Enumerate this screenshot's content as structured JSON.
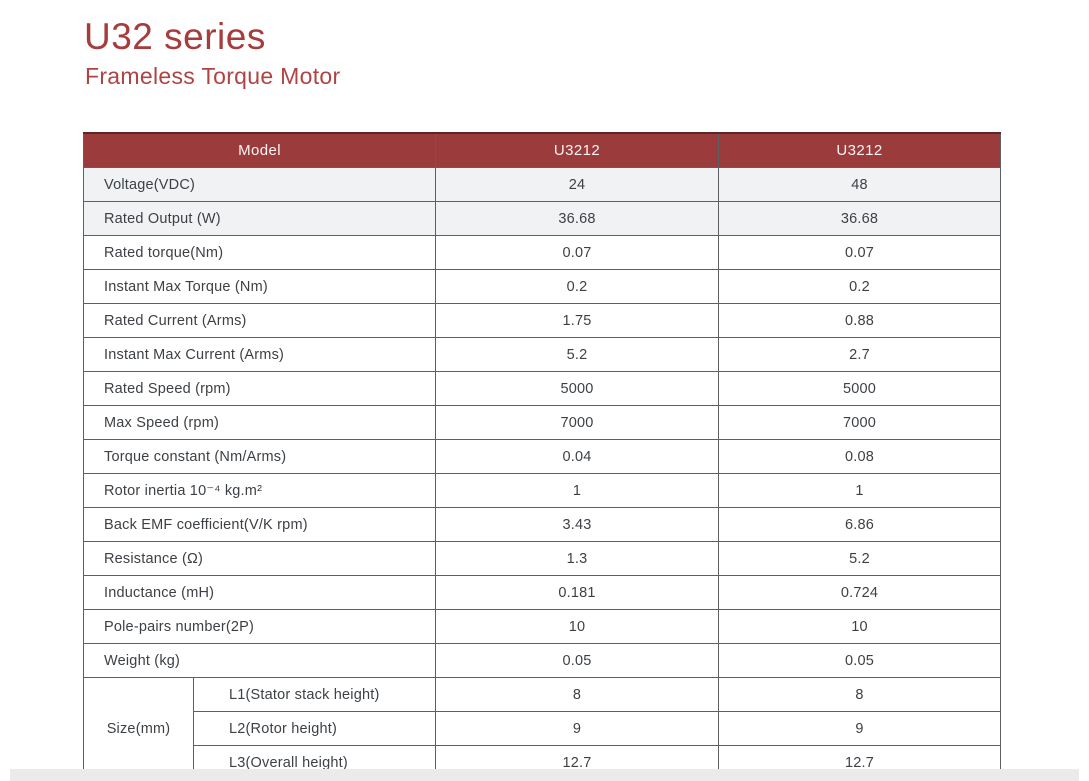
{
  "page": {
    "title": "U32 series",
    "subtitle": "Frameless Torque Motor"
  },
  "colors": {
    "header_maroon": "#9c3b3b",
    "title_red": "#a63c3c",
    "shaded_row": "#f1f2f4",
    "border_gray": "#5c6063"
  },
  "table": {
    "header": {
      "model_label": "Model",
      "col1": "U3212",
      "col2": "U3212"
    },
    "rows": [
      {
        "label": "Voltage(VDC)",
        "values": [
          "24",
          "48"
        ],
        "shaded": true
      },
      {
        "label": "Rated Output (W)",
        "values": [
          "36.68",
          "36.68"
        ],
        "shaded": true
      },
      {
        "label": "Rated torque(Nm)",
        "values": [
          "0.07",
          "0.07"
        ],
        "shaded": false
      },
      {
        "label": "Instant Max Torque (Nm)",
        "values": [
          "0.2",
          "0.2"
        ],
        "shaded": false
      },
      {
        "label": "Rated Current (Arms)",
        "values": [
          "1.75",
          "0.88"
        ],
        "shaded": false
      },
      {
        "label": "Instant Max Current (Arms)",
        "values": [
          "5.2",
          "2.7"
        ],
        "shaded": false
      },
      {
        "label": "Rated Speed (rpm)",
        "values": [
          "5000",
          "5000"
        ],
        "shaded": false
      },
      {
        "label": "Max Speed (rpm)",
        "values": [
          "7000",
          "7000"
        ],
        "shaded": false
      },
      {
        "label": "Torque constant (Nm/Arms)",
        "values": [
          "0.04",
          "0.08"
        ],
        "shaded": false
      },
      {
        "label": "Rotor inertia 10⁻⁴ kg.m²",
        "values": [
          "1",
          "1"
        ],
        "shaded": false
      },
      {
        "label": "Back EMF coefficient(V/K rpm)",
        "values": [
          "3.43",
          "6.86"
        ],
        "shaded": false
      },
      {
        "label": "Resistance (Ω)",
        "values": [
          "1.3",
          "5.2"
        ],
        "shaded": false
      },
      {
        "label": "Inductance (mH)",
        "values": [
          "0.181",
          "0.724"
        ],
        "shaded": false
      },
      {
        "label": "Pole-pairs number(2P)",
        "values": [
          "10",
          "10"
        ],
        "shaded": false
      },
      {
        "label": "Weight (kg)",
        "values": [
          "0.05",
          "0.05"
        ],
        "shaded": false
      }
    ],
    "size_group": {
      "label": "Size(mm)",
      "rows": [
        {
          "label": "L1(Stator stack height)",
          "values": [
            "8",
            "8"
          ]
        },
        {
          "label": "L2(Rotor height)",
          "values": [
            "9",
            "9"
          ]
        },
        {
          "label": "L3(Overall height)",
          "values": [
            "12.7",
            "12.7"
          ]
        }
      ]
    }
  }
}
